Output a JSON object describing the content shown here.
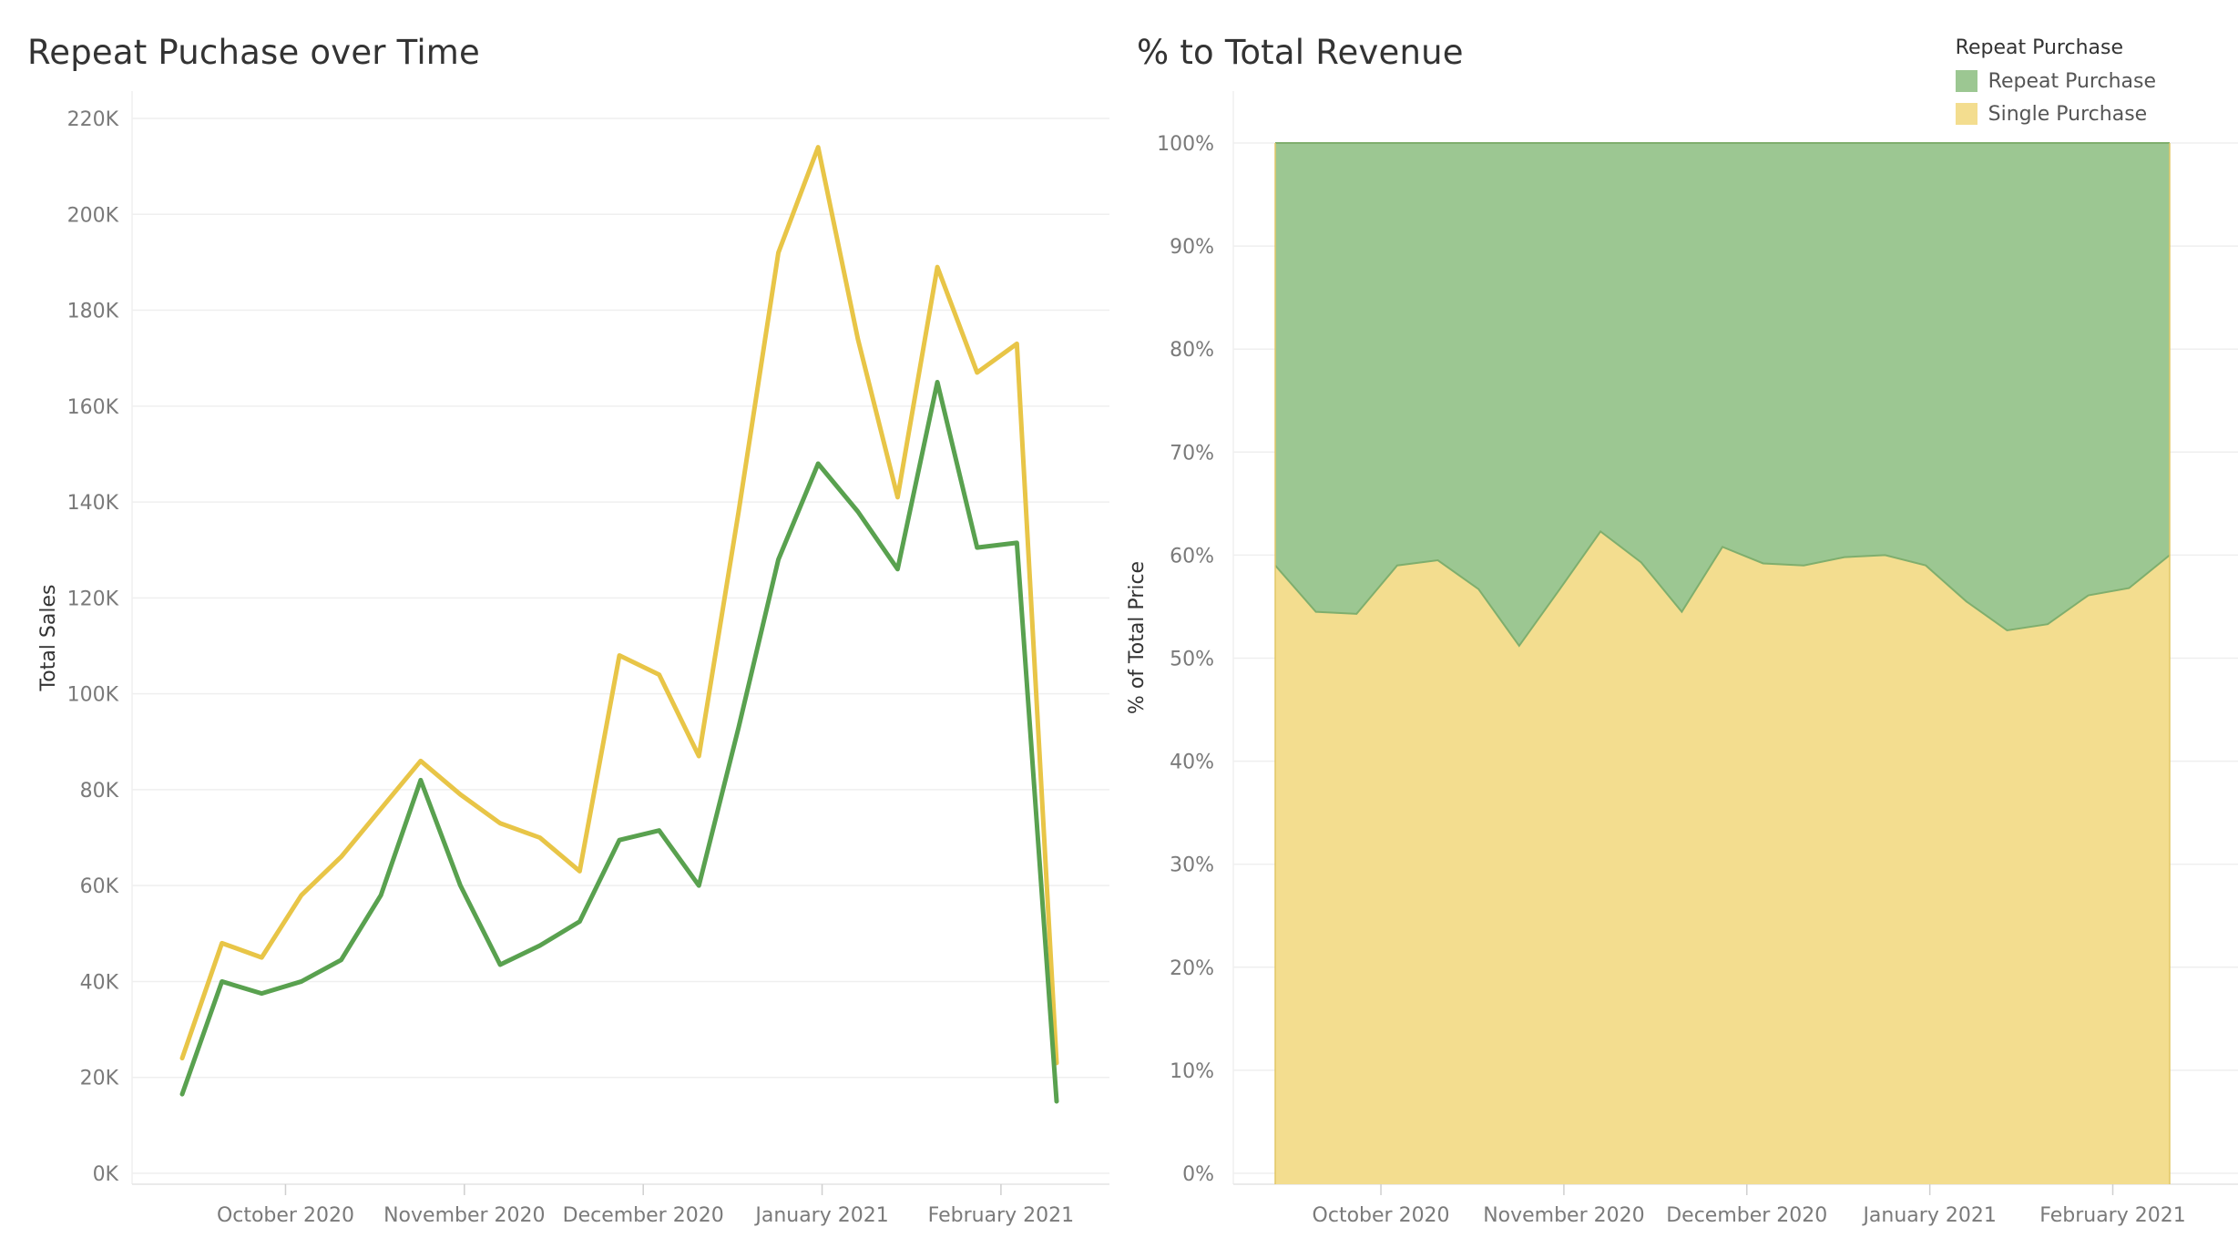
{
  "left": {
    "title": "Repeat Puchase over Time"
  },
  "right": {
    "title": "% to Total Revenue"
  },
  "legend": {
    "title": "Repeat Purchase",
    "items": [
      {
        "label": "Repeat Purchase",
        "color": "#9cc792"
      },
      {
        "label": "Single Purchase",
        "color": "#f3dd8f"
      }
    ]
  },
  "colors": {
    "single_line": "#e8c547",
    "repeat_line": "#59a14f",
    "grid": "#efefef"
  },
  "chart_data": [
    {
      "type": "line",
      "title": "Repeat Puchase over Time",
      "ylabel": "Total Sales",
      "xlabel": "",
      "ylim": [
        0,
        220000
      ],
      "yticks": [
        0,
        20000,
        40000,
        60000,
        80000,
        100000,
        120000,
        140000,
        160000,
        180000,
        200000,
        220000
      ],
      "ytick_labels": [
        "0K",
        "20K",
        "40K",
        "60K",
        "80K",
        "100K",
        "120K",
        "140K",
        "160K",
        "180K",
        "200K",
        "220K"
      ],
      "x_tick_labels": [
        "October 2020",
        "November 2020",
        "December 2020",
        "January 2021",
        "February 2021"
      ],
      "x_tick_weeks": [
        2.6,
        7.1,
        11.6,
        16.1,
        20.6
      ],
      "x_weeks": [
        0,
        1,
        2,
        3,
        4,
        5,
        6,
        7,
        8,
        9,
        10,
        11,
        12,
        13,
        14,
        15,
        16,
        17,
        18,
        19,
        20,
        21,
        22
      ],
      "grid": true,
      "series": [
        {
          "key": "single",
          "values": [
            24000,
            48000,
            45000,
            58000,
            66000,
            76000,
            86000,
            79000,
            73000,
            70000,
            63000,
            108000,
            104000,
            87000,
            138000,
            192000,
            214000,
            174000,
            141000,
            189000,
            167000,
            173000,
            23000
          ]
        },
        {
          "key": "repeat",
          "values": [
            16500,
            40000,
            37500,
            40000,
            44500,
            58000,
            82000,
            60000,
            43500,
            47500,
            52500,
            69500,
            71500,
            60000,
            93000,
            128000,
            148000,
            138000,
            126000,
            165000,
            130500,
            131500,
            15000
          ]
        }
      ]
    },
    {
      "type": "area",
      "title": "% to Total Revenue",
      "ylabel": "% of Total Price",
      "xlabel": "",
      "ylim": [
        0,
        1
      ],
      "yticks": [
        0,
        0.1,
        0.2,
        0.3,
        0.4,
        0.5,
        0.6,
        0.7,
        0.8,
        0.9,
        1.0
      ],
      "ytick_labels": [
        "0%",
        "10%",
        "20%",
        "30%",
        "40%",
        "50%",
        "60%",
        "70%",
        "80%",
        "90%",
        "100%"
      ],
      "x_tick_labels": [
        "October 2020",
        "November 2020",
        "December 2020",
        "January 2021",
        "February 2021"
      ],
      "x_tick_weeks": [
        2.6,
        7.1,
        11.6,
        16.1,
        20.6
      ],
      "x_weeks": [
        0,
        1,
        2,
        3,
        4,
        5,
        6,
        7,
        8,
        9,
        10,
        11,
        12,
        13,
        14,
        15,
        16,
        17,
        18,
        19,
        20,
        21,
        22
      ],
      "grid": true,
      "stacked": true,
      "series": [
        {
          "name": "Single Purchase",
          "key": "single",
          "values": [
            0.59,
            0.545,
            0.543,
            0.59,
            0.595,
            0.567,
            0.512,
            0.567,
            0.623,
            0.593,
            0.545,
            0.608,
            0.592,
            0.59,
            0.598,
            0.6,
            0.59,
            0.555,
            0.527,
            0.533,
            0.561,
            0.568,
            0.6
          ]
        },
        {
          "name": "Repeat Purchase",
          "key": "repeat",
          "values": [
            0.41,
            0.455,
            0.457,
            0.41,
            0.405,
            0.433,
            0.488,
            0.433,
            0.377,
            0.407,
            0.455,
            0.392,
            0.408,
            0.41,
            0.402,
            0.4,
            0.41,
            0.445,
            0.473,
            0.467,
            0.439,
            0.432,
            0.4
          ]
        }
      ]
    }
  ]
}
